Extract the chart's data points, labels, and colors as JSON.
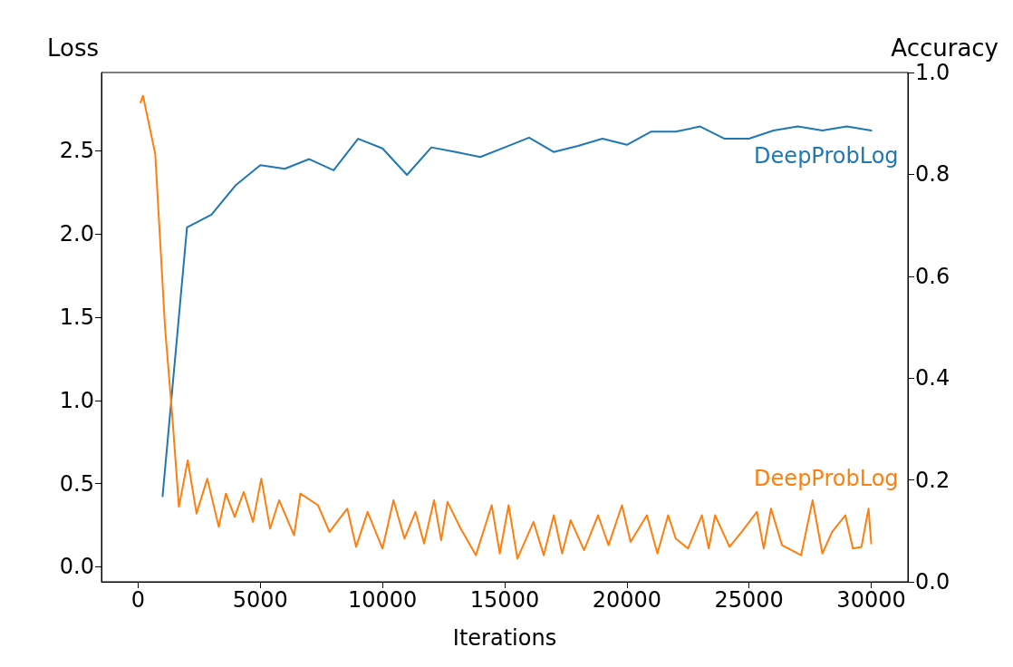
{
  "chart_data": {
    "type": "line",
    "xlabel": "Iterations",
    "ylabel": "Loss",
    "y2label": "Accuracy",
    "xlim": [
      -1500,
      31500
    ],
    "xticks": [
      0,
      5000,
      10000,
      15000,
      20000,
      25000,
      30000
    ],
    "ylim": [
      -0.09,
      2.97
    ],
    "yticks": [
      {
        "value": 0,
        "label": "0.0"
      },
      0.5,
      {
        "value": 1,
        "label": "1.0"
      },
      1.5,
      {
        "value": 2,
        "label": "2.0"
      },
      2.5
    ],
    "y2lim": [
      0,
      1
    ],
    "y2ticks": [
      {
        "value": 0,
        "label": "0.0"
      },
      0.2,
      0.4,
      0.6,
      0.8,
      {
        "value": 1,
        "label": "1.0"
      }
    ],
    "grid": false,
    "legend": false,
    "marker": "none",
    "line_style": "solid",
    "series": [
      {
        "name": "DeepProbLog",
        "color": "#1f77b4",
        "axis": "y2",
        "x": [
          1000,
          2000,
          3000,
          4000,
          5000,
          6000,
          7000,
          8000,
          9000,
          10000,
          11000,
          12000,
          13000,
          14000,
          15000,
          16000,
          17000,
          18000,
          19000,
          20000,
          21000,
          22000,
          23000,
          24000,
          25000,
          26000,
          27000,
          28000,
          29000,
          30000
        ],
        "values": [
          0.168,
          0.696,
          0.721,
          0.779,
          0.818,
          0.811,
          0.83,
          0.808,
          0.87,
          0.851,
          0.799,
          0.853,
          0.844,
          0.834,
          0.853,
          0.872,
          0.844,
          0.856,
          0.87,
          0.858,
          0.884,
          0.884,
          0.894,
          0.87,
          0.87,
          0.886,
          0.894,
          0.886,
          0.894,
          0.886
        ]
      },
      {
        "name": "DeepProbLog",
        "color": "#ff7f0e",
        "axis": "y",
        "x": [
          100,
          200,
          700,
          1100,
          1400,
          1670,
          2030,
          2390,
          2830,
          3300,
          3590,
          3950,
          4320,
          4700,
          5040,
          5400,
          5770,
          6380,
          6640,
          7360,
          7830,
          8560,
          8920,
          9390,
          10000,
          10450,
          10900,
          11350,
          11700,
          12110,
          12400,
          12660,
          13200,
          13820,
          14470,
          14800,
          15160,
          15520,
          16180,
          16600,
          17010,
          17350,
          17700,
          18250,
          18820,
          19250,
          19800,
          20150,
          20820,
          21250,
          21690,
          22000,
          22500,
          23070,
          23350,
          23610,
          24200,
          24700,
          25320,
          25600,
          25900,
          26350,
          27130,
          27600,
          28000,
          28400,
          28940,
          29250,
          29600,
          29890,
          30000
        ],
        "values": [
          2.79,
          2.83,
          2.48,
          1.44,
          0.9,
          0.36,
          0.64,
          0.32,
          0.53,
          0.24,
          0.44,
          0.3,
          0.45,
          0.27,
          0.53,
          0.23,
          0.4,
          0.19,
          0.44,
          0.37,
          0.21,
          0.35,
          0.12,
          0.33,
          0.11,
          0.4,
          0.17,
          0.33,
          0.14,
          0.4,
          0.16,
          0.39,
          0.23,
          0.07,
          0.37,
          0.08,
          0.37,
          0.05,
          0.27,
          0.07,
          0.31,
          0.08,
          0.28,
          0.1,
          0.31,
          0.13,
          0.37,
          0.15,
          0.31,
          0.08,
          0.31,
          0.17,
          0.11,
          0.31,
          0.11,
          0.31,
          0.12,
          0.21,
          0.33,
          0.11,
          0.35,
          0.13,
          0.07,
          0.4,
          0.08,
          0.21,
          0.31,
          0.11,
          0.12,
          0.35,
          0.14
        ]
      }
    ]
  }
}
